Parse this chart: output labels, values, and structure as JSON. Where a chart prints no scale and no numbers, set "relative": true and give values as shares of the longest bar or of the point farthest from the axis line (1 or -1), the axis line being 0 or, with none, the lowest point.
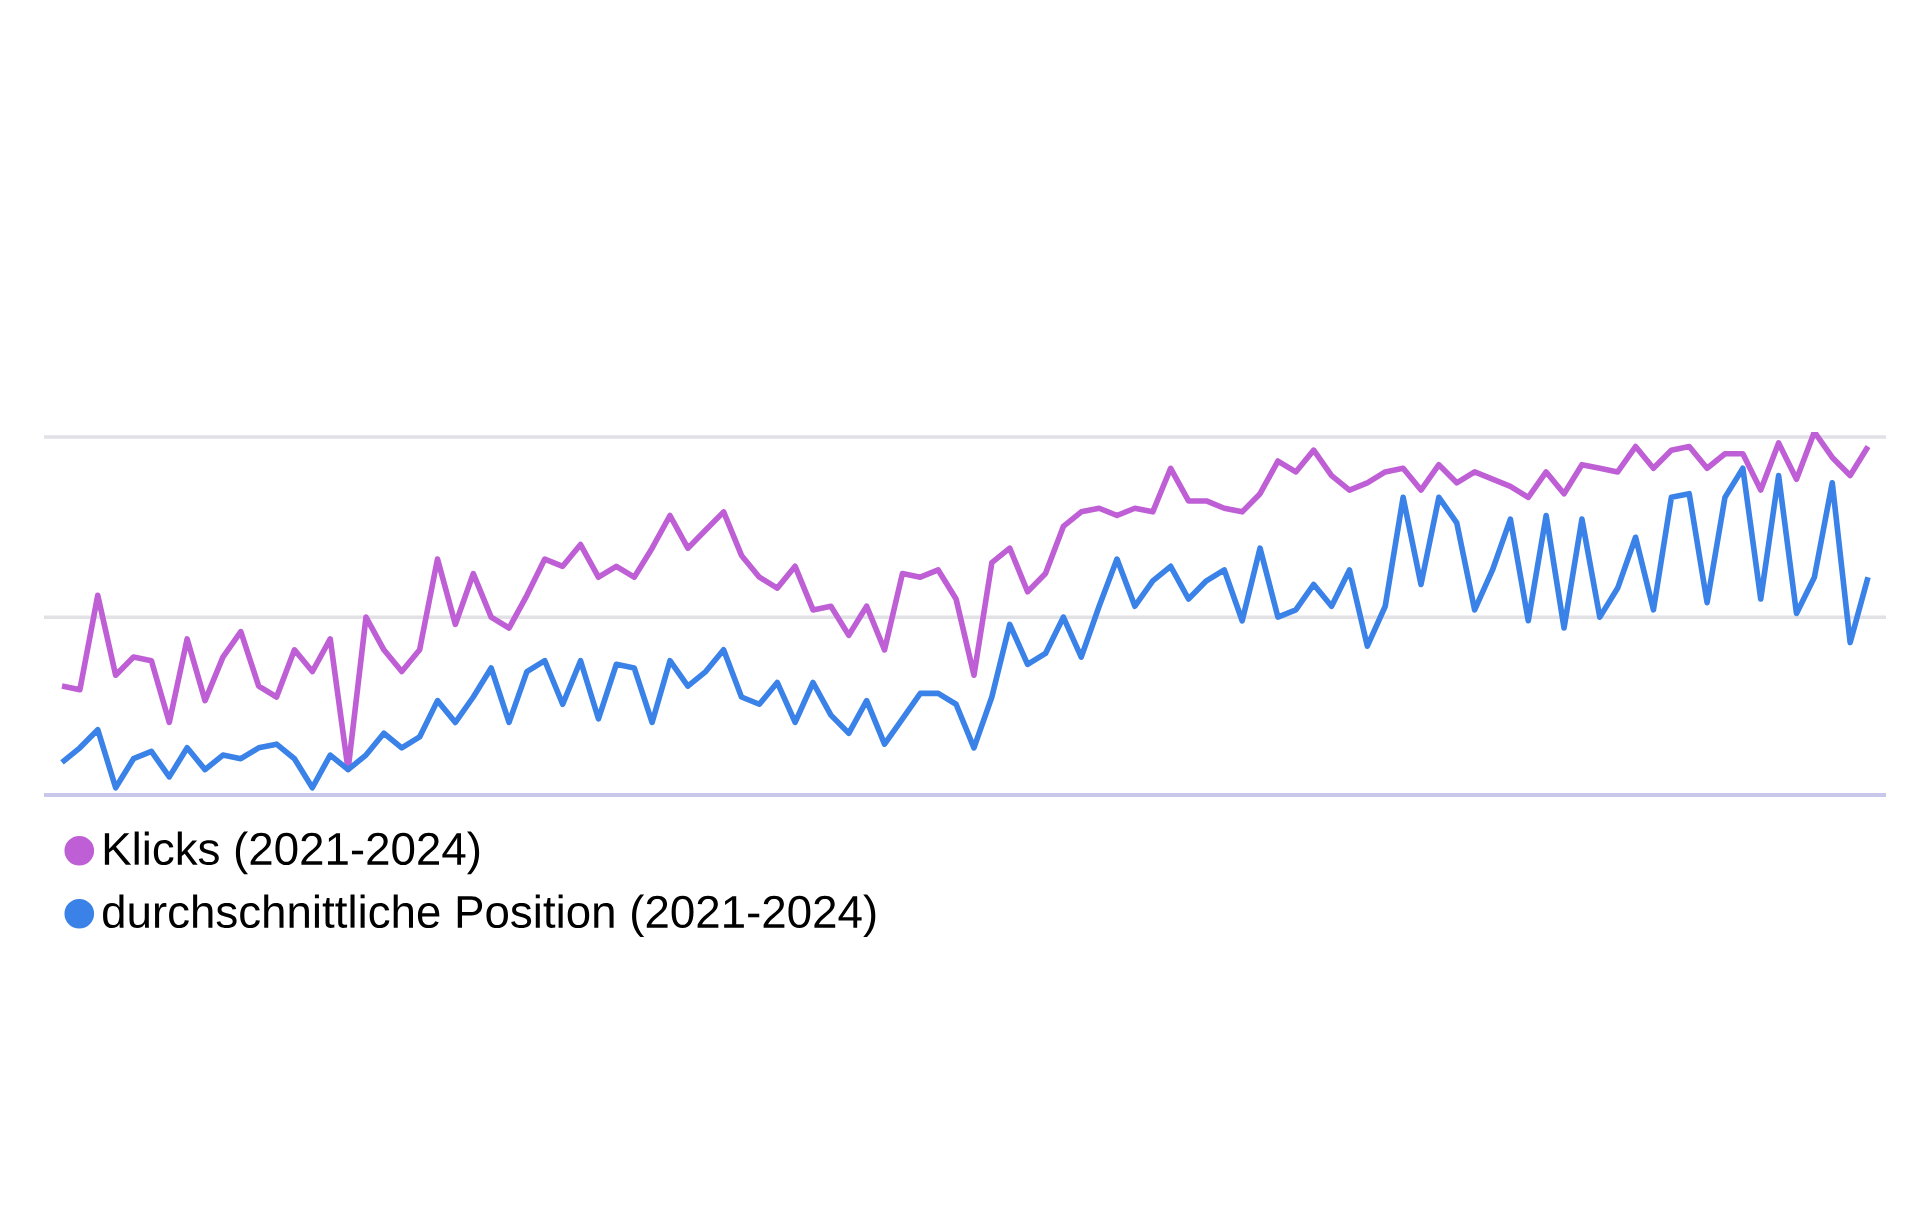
{
  "chart_data": {
    "type": "line",
    "relative": true,
    "legend": "bottom left",
    "ref_lines": [
      {
        "axis": "y",
        "value": 0.49,
        "color": "#e1e1e6"
      },
      {
        "axis": "y",
        "value": 0.986,
        "color": "#e1e1e6"
      }
    ],
    "categories": [
      null,
      null,
      null,
      null,
      null,
      null,
      null,
      null,
      null,
      null,
      null,
      null,
      null,
      null,
      null,
      null,
      null,
      null,
      null,
      null,
      null,
      null,
      null,
      null,
      null,
      null,
      null,
      null,
      null,
      null,
      null,
      null,
      null,
      null,
      null,
      null,
      null,
      null,
      null,
      null,
      null,
      null,
      null,
      null,
      null,
      null,
      null,
      null,
      null,
      null,
      null,
      null,
      null,
      null,
      null,
      null,
      null,
      null,
      null,
      null,
      null,
      null,
      null,
      null,
      null,
      null,
      null,
      null,
      null,
      null,
      null,
      null,
      null,
      null,
      null,
      null,
      null,
      null,
      null,
      null,
      null,
      null,
      null,
      null,
      null,
      null,
      null,
      null,
      null,
      null,
      null,
      null,
      null,
      null,
      null,
      null,
      null,
      null,
      null,
      null,
      null,
      null
    ],
    "series": [
      {
        "name": "Klicks (2021-2024)",
        "color": "#bf5fd6",
        "values": [
          0.3,
          0.29,
          0.55,
          0.33,
          0.38,
          0.37,
          0.2,
          0.43,
          0.26,
          0.38,
          0.45,
          0.3,
          0.27,
          0.4,
          0.34,
          0.43,
          0.07,
          0.49,
          0.4,
          0.34,
          0.4,
          0.65,
          0.47,
          0.61,
          0.49,
          0.46,
          0.55,
          0.65,
          0.63,
          0.69,
          0.6,
          0.63,
          0.6,
          0.68,
          0.77,
          0.68,
          0.73,
          0.78,
          0.66,
          0.6,
          0.57,
          0.63,
          0.51,
          0.52,
          0.44,
          0.52,
          0.4,
          0.61,
          0.6,
          0.62,
          0.54,
          0.33,
          0.64,
          0.68,
          0.56,
          0.61,
          0.74,
          0.78,
          0.79,
          0.77,
          0.79,
          0.78,
          0.9,
          0.81,
          0.81,
          0.79,
          0.78,
          0.83,
          0.92,
          0.89,
          0.95,
          0.88,
          0.84,
          0.86,
          0.89,
          0.9,
          0.84,
          0.91,
          0.86,
          0.89,
          0.87,
          0.85,
          0.82,
          0.89,
          0.83,
          0.91,
          0.9,
          0.89,
          0.96,
          0.9,
          0.95,
          0.96,
          0.9,
          0.94,
          0.94,
          0.84,
          0.97,
          0.87,
          1.0,
          0.93,
          0.88,
          0.96
        ]
      },
      {
        "name": "durchschnittliche Position (2021-2024)",
        "color": "#3b82e8",
        "values": [
          0.09,
          0.13,
          0.18,
          0.02,
          0.1,
          0.12,
          0.05,
          0.13,
          0.07,
          0.11,
          0.1,
          0.13,
          0.14,
          0.1,
          0.02,
          0.11,
          0.07,
          0.11,
          0.17,
          0.13,
          0.16,
          0.26,
          0.2,
          0.27,
          0.35,
          0.2,
          0.34,
          0.37,
          0.25,
          0.37,
          0.21,
          0.36,
          0.35,
          0.2,
          0.37,
          0.3,
          0.34,
          0.4,
          0.27,
          0.25,
          0.31,
          0.2,
          0.31,
          0.22,
          0.17,
          0.26,
          0.14,
          0.21,
          0.28,
          0.28,
          0.25,
          0.13,
          0.27,
          0.47,
          0.36,
          0.39,
          0.49,
          0.38,
          0.52,
          0.65,
          0.52,
          0.59,
          0.63,
          0.54,
          0.59,
          0.62,
          0.48,
          0.68,
          0.49,
          0.51,
          0.58,
          0.52,
          0.62,
          0.41,
          0.52,
          0.82,
          0.58,
          0.82,
          0.75,
          0.51,
          0.62,
          0.76,
          0.48,
          0.77,
          0.46,
          0.76,
          0.49,
          0.57,
          0.71,
          0.51,
          0.82,
          0.83,
          0.53,
          0.82,
          0.9,
          0.54,
          0.88,
          0.5,
          0.6,
          0.86,
          0.42,
          0.6
        ]
      }
    ]
  }
}
